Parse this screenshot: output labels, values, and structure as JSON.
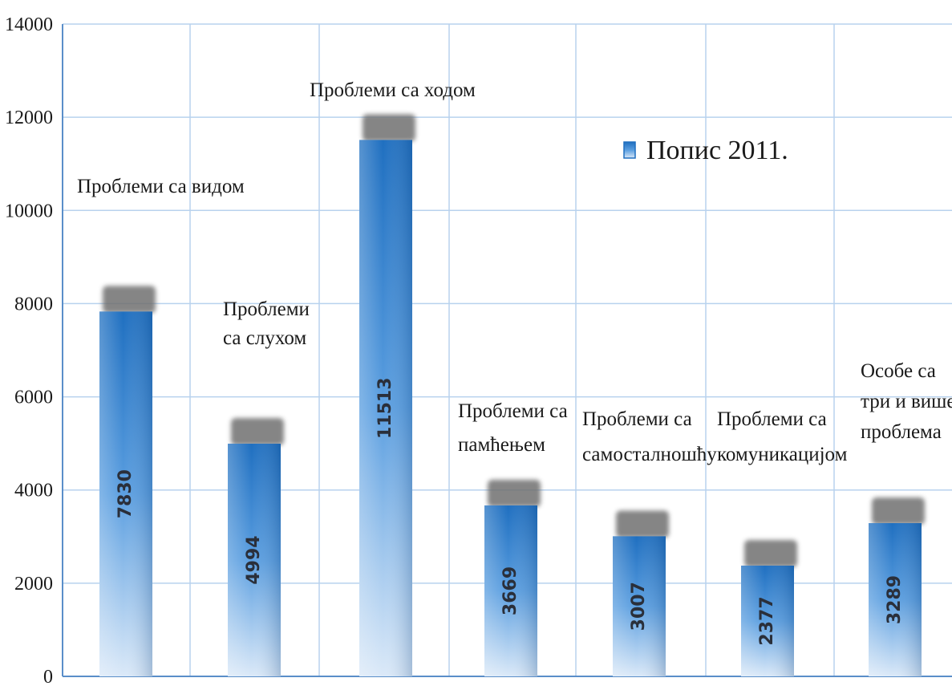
{
  "chart_data": {
    "type": "bar",
    "categories": [
      [
        "Проблеми са  видом"
      ],
      [
        "Проблеми",
        "са слухом"
      ],
      [
        "Проблеми са ходом"
      ],
      [
        "Проблеми са",
        "памћењем"
      ],
      [
        "Проблеми са",
        "самосталношћу"
      ],
      [
        "Проблеми са",
        "комуникацијом"
      ],
      [
        "Особе са",
        "три и више",
        "проблема"
      ]
    ],
    "series": [
      {
        "name": "Попис  2011.",
        "values": [
          7830,
          4994,
          11513,
          3669,
          3007,
          2377,
          3289
        ]
      }
    ],
    "ylim": [
      0,
      14000
    ],
    "yticks": [
      0,
      2000,
      4000,
      6000,
      8000,
      10000,
      12000,
      14000
    ],
    "grid": true,
    "legend": "top-right",
    "colors": {
      "bar_top": "#1f6fc0",
      "bar_mid": "#5a9ee0",
      "bar_bottom": "#dbe9f8",
      "grid": "#b8d2ee",
      "shadow": "#707070"
    }
  }
}
